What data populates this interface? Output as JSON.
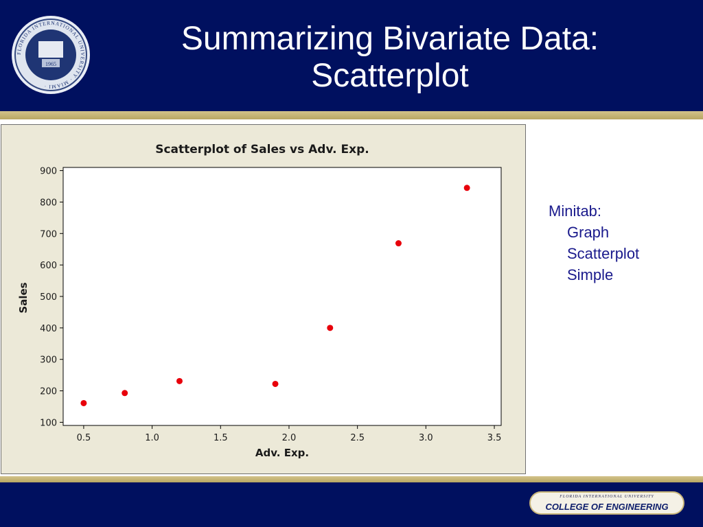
{
  "slide": {
    "title_line1": "Summarizing Bivariate Data:",
    "title_line2": "Scatterplot",
    "colors": {
      "header_bg": "#00105f",
      "gold": "#c9b67a",
      "note_text": "#1a1a8c",
      "point": "#e8000b"
    }
  },
  "seal": {
    "ring_text": "FLORIDA INTERNATIONAL UNIVERSITY · MIAMI ·",
    "year": "1965"
  },
  "note": {
    "line1": "Minitab:",
    "line2": "Graph",
    "line3": "Scatterplot",
    "line4": "Simple"
  },
  "footer": {
    "university": "FLORIDA INTERNATIONAL UNIVERSITY",
    "college": "COLLEGE OF ENGINEERING"
  },
  "chart_data": {
    "type": "scatter",
    "title": "Scatterplot of Sales vs Adv. Exp.",
    "xlabel": "Adv. Exp.",
    "ylabel": "Sales",
    "xlim": [
      0.35,
      3.55
    ],
    "ylim": [
      90,
      910
    ],
    "xticks": [
      0.5,
      1.0,
      1.5,
      2.0,
      2.5,
      3.0,
      3.5
    ],
    "xtick_labels": [
      "0.5",
      "1.0",
      "1.5",
      "2.0",
      "2.5",
      "3.0",
      "3.5"
    ],
    "yticks": [
      100,
      200,
      300,
      400,
      500,
      600,
      700,
      800,
      900
    ],
    "ytick_labels": [
      "100",
      "200",
      "300",
      "400",
      "500",
      "600",
      "700",
      "800",
      "900"
    ],
    "grid": false,
    "point_color": "#e8000b",
    "x": [
      0.5,
      0.8,
      1.2,
      1.9,
      2.3,
      2.8,
      3.3
    ],
    "y": [
      161,
      193,
      231,
      222,
      400,
      669,
      845
    ]
  }
}
